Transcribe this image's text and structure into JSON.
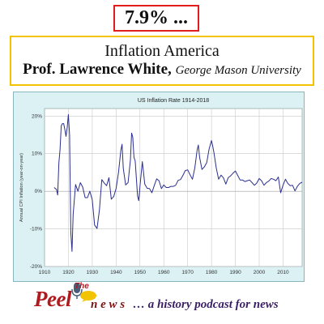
{
  "badge": {
    "text": "7.9% ..."
  },
  "banner": {
    "title": "Inflation America",
    "author": "Prof. Lawrence White,",
    "affiliation": "George Mason University"
  },
  "chart_data": {
    "type": "line",
    "title": "US Inflation Rate 1914-2018",
    "ylabel": "Annual CPI Inflation (year-on-year)",
    "xlabel": "",
    "xlim": [
      1910,
      2018
    ],
    "ylim": [
      -20,
      22
    ],
    "x_ticks": [
      "1910",
      "1920",
      "1930",
      "1940",
      "1950",
      "1960",
      "1970",
      "1980",
      "1990",
      "2000",
      "2010"
    ],
    "y_ticks": [
      "-20%",
      "-10%",
      "0%",
      "10%",
      "20%"
    ],
    "grid": true,
    "series_color": "#2b2f8e",
    "series": [
      {
        "x": [
          1914,
          1915,
          1915.5,
          1916,
          1916.5,
          1917,
          1917.5,
          1918,
          1918.5,
          1919,
          1919.5,
          1920,
          1920.5,
          1921,
          1921.5,
          1922,
          1923,
          1924,
          1925,
          1926,
          1927,
          1928,
          1929,
          1930,
          1931,
          1932,
          1933,
          1934,
          1935,
          1936,
          1937,
          1938,
          1939,
          1940,
          1941,
          1942,
          1942.5,
          1943,
          1944,
          1945,
          1946,
          1946.5,
          1947,
          1947.5,
          1948,
          1949,
          1949.5,
          1950,
          1951,
          1951.5,
          1952,
          1953,
          1954,
          1955,
          1956,
          1957,
          1958,
          1959,
          1960,
          1961,
          1962,
          1963,
          1964,
          1965,
          1966,
          1967,
          1968,
          1969,
          1970,
          1971,
          1972,
          1973,
          1974,
          1974.5,
          1975,
          1976,
          1977,
          1978,
          1979,
          1980,
          1980.5,
          1981,
          1982,
          1983,
          1984,
          1985,
          1986,
          1987,
          1988,
          1989,
          1990,
          1991,
          1992,
          1993,
          1994,
          1995,
          1996,
          1997,
          1998,
          1999,
          2000,
          2001,
          2002,
          2003,
          2004,
          2005,
          2006,
          2007,
          2008,
          2009,
          2010,
          2011,
          2012,
          2013,
          2014,
          2015,
          2016,
          2017,
          2018
        ],
        "y": [
          1.0,
          0.5,
          -1.0,
          7.6,
          11.0,
          17.4,
          18.0,
          18.0,
          16.5,
          14.6,
          17.0,
          20.4,
          15.0,
          -10.8,
          -16.0,
          -6.2,
          1.8,
          0.0,
          2.3,
          1.1,
          -1.7,
          -1.7,
          0.0,
          -2.3,
          -9.0,
          -9.9,
          -5.1,
          3.1,
          2.2,
          1.5,
          3.6,
          -2.1,
          -1.4,
          0.7,
          5.0,
          10.9,
          12.5,
          6.1,
          1.7,
          2.3,
          8.3,
          15.5,
          14.4,
          9.0,
          8.1,
          -1.2,
          -2.5,
          1.3,
          7.9,
          5.0,
          1.9,
          0.8,
          0.7,
          -0.4,
          1.5,
          3.3,
          2.8,
          0.7,
          1.7,
          1.0,
          1.0,
          1.3,
          1.3,
          1.6,
          2.9,
          3.1,
          4.2,
          5.5,
          5.7,
          4.4,
          3.2,
          6.2,
          11.0,
          12.3,
          9.1,
          5.8,
          6.5,
          7.6,
          11.3,
          13.5,
          12.0,
          10.3,
          6.2,
          3.2,
          4.3,
          3.6,
          1.9,
          3.6,
          4.1,
          4.8,
          5.4,
          4.2,
          3.0,
          3.0,
          2.6,
          2.8,
          3.0,
          2.3,
          1.6,
          2.2,
          3.4,
          2.8,
          1.6,
          2.3,
          2.7,
          3.4,
          3.2,
          2.8,
          3.8,
          -0.4,
          1.6,
          3.2,
          2.1,
          1.5,
          1.6,
          0.1,
          1.3,
          2.1,
          2.4
        ]
      }
    ]
  },
  "footer": {
    "the": "The",
    "peel": "Peel",
    "news": "n e w s",
    "tagline": "… a history podcast for news"
  },
  "icons": [
    "microphone-icon",
    "speech-bubble-icon"
  ],
  "colors": {
    "badge_border": "#e21d1d",
    "banner_border": "#f2c400",
    "chart_bg": "#dcf1f4",
    "brand_red": "#b0191e",
    "tagline": "#3a1f66"
  }
}
